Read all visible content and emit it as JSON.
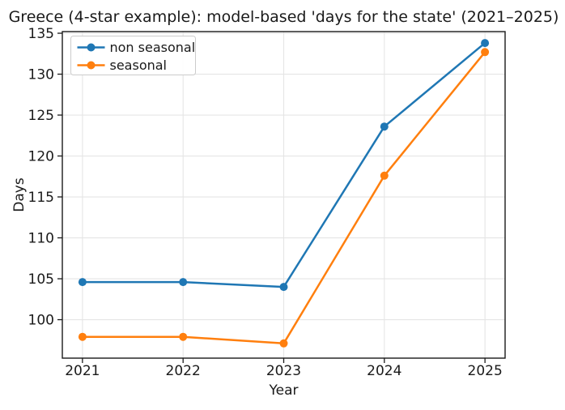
{
  "chart_data": {
    "type": "line",
    "title": "Greece (4-star example): model-based 'days for the state' (2021–2025)",
    "xlabel": "Year",
    "ylabel": "Days",
    "x": [
      2021,
      2022,
      2023,
      2024,
      2025
    ],
    "series": [
      {
        "name": "non seasonal",
        "color": "#1f77b4",
        "marker": "circle",
        "values": [
          104.6,
          104.6,
          104.0,
          123.6,
          133.8
        ]
      },
      {
        "name": "seasonal",
        "color": "#ff7f0e",
        "marker": "circle",
        "values": [
          97.9,
          97.9,
          97.1,
          117.6,
          132.7
        ]
      }
    ],
    "xticks": [
      "2021",
      "2022",
      "2023",
      "2024",
      "2025"
    ],
    "xtick_values": [
      2021,
      2022,
      2023,
      2024,
      2025
    ],
    "yticks": [
      "100",
      "105",
      "110",
      "115",
      "120",
      "125",
      "130",
      "135"
    ],
    "ytick_values": [
      100,
      105,
      110,
      115,
      120,
      125,
      130,
      135
    ],
    "xlim": [
      2020.8,
      2025.2
    ],
    "ylim": [
      95.3,
      135.2
    ],
    "grid": true,
    "legend": {
      "position": "upper left",
      "entries": [
        "non seasonal",
        "seasonal"
      ]
    },
    "colors": {
      "grid": "#e5e5e5",
      "spine": "#1a1a1a",
      "legend_border": "#cccccc",
      "background": "#ffffff"
    }
  }
}
